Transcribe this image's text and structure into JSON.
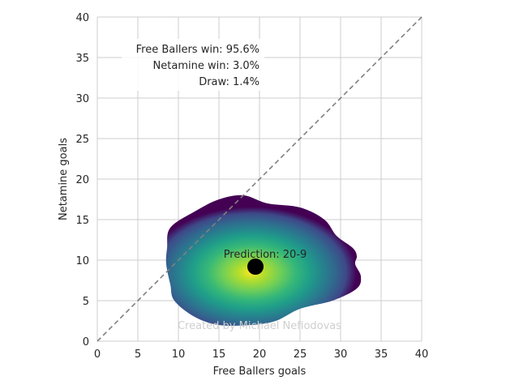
{
  "chart_data": {
    "type": "heatmap",
    "xlabel": "Free Ballers goals",
    "ylabel": "Netamine goals",
    "xlim": [
      0,
      40
    ],
    "ylim": [
      0,
      40
    ],
    "xticks": [
      0,
      5,
      10,
      15,
      20,
      25,
      30,
      35,
      40
    ],
    "yticks": [
      0,
      5,
      10,
      15,
      20,
      25,
      30,
      35,
      40
    ],
    "grid": true,
    "diagonal_line": {
      "from": [
        0,
        0
      ],
      "to": [
        40,
        40
      ],
      "style": "dashed",
      "color": "#808080"
    },
    "colormap": "viridis",
    "density_peak": [
      19,
      8.5
    ],
    "density_boundary": [
      [
        9,
        14
      ],
      [
        12,
        16
      ],
      [
        15,
        17.5
      ],
      [
        18,
        18
      ],
      [
        21,
        17
      ],
      [
        25,
        16.5
      ],
      [
        28,
        15
      ],
      [
        29.5,
        13
      ],
      [
        31.5,
        11.5
      ],
      [
        32,
        10.5
      ],
      [
        31.8,
        9.5
      ],
      [
        32.5,
        8
      ],
      [
        32,
        6.5
      ],
      [
        29,
        5
      ],
      [
        25,
        4
      ],
      [
        22,
        2.5
      ],
      [
        19,
        2
      ],
      [
        15,
        2
      ],
      [
        12,
        3
      ],
      [
        9.5,
        5
      ],
      [
        9,
        7
      ],
      [
        8.5,
        9.5
      ],
      [
        8.6,
        11.5
      ]
    ],
    "prediction_point": {
      "x": 19.5,
      "y": 9.2,
      "label": "Prediction: 20-9"
    },
    "legend_box": {
      "placement": "top-left",
      "lines": [
        "Free Ballers win: 95.6%",
        "Netamine win: 3.0%",
        "Draw: 1.4%"
      ]
    },
    "watermark": "Created by Michael Nefiodovas"
  }
}
